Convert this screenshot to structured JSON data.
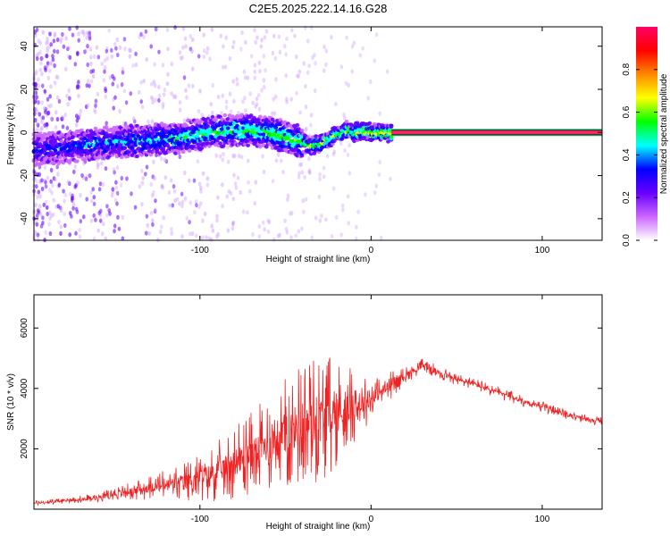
{
  "title": "C2E5.2025.222.14.16.G28",
  "chart_data": [
    {
      "type": "heatmap",
      "xlabel": "Height of straight line (km)",
      "ylabel": "Frequency (Hz)",
      "xlim": [
        -197,
        135
      ],
      "ylim": [
        -50,
        49
      ],
      "xticks": [
        -100,
        0,
        100
      ],
      "yticks": [
        -40,
        -20,
        0,
        20,
        40
      ],
      "ridge": {
        "x": [
          -197,
          -180,
          -160,
          -140,
          -120,
          -100,
          -85,
          -70,
          -60,
          -50,
          -42,
          -36,
          -30,
          -25,
          -20,
          -15,
          -10,
          -5,
          0,
          5,
          12,
          135
        ],
        "frequency": [
          -8,
          -7,
          -5,
          -4,
          -3,
          -1,
          1,
          1,
          0,
          -2,
          -4,
          -6,
          -5,
          -3,
          -1,
          1,
          0,
          1,
          0,
          0,
          0,
          0
        ]
      },
      "colorbar": {
        "label": "Normalized spectral amplitude",
        "ticks": [
          0.0,
          0.2,
          0.4,
          0.6,
          0.8
        ],
        "range": [
          0,
          1
        ],
        "colors": [
          "#ffffff",
          "#cc66ff",
          "#6600ff",
          "#0000ff",
          "#00ffff",
          "#00ff00",
          "#ffff00",
          "#ff8800",
          "#ff0000",
          "#ff0066"
        ]
      }
    },
    {
      "type": "line",
      "xlabel": "Height of straight line (km)",
      "ylabel": "SNR (10 * v/v)",
      "xlim": [
        -197,
        135
      ],
      "ylim": [
        0,
        7100
      ],
      "xticks": [
        -100,
        0,
        100
      ],
      "yticks": [
        2000,
        4000,
        6000
      ],
      "color": "#ee2222",
      "series": [
        {
          "x": [
            -197,
            -185,
            -175,
            -165,
            -155,
            -145,
            -135,
            -125,
            -115,
            -105,
            -100,
            -95,
            -90,
            -85,
            -80,
            -75,
            -70,
            -65,
            -60,
            -55,
            -50,
            -45,
            -40,
            -35,
            -30,
            -25,
            -20,
            -15,
            -10,
            -5,
            0,
            5,
            10,
            15,
            20,
            25,
            30,
            35,
            40,
            50,
            60,
            70,
            80,
            90,
            100,
            110,
            120,
            135
          ],
          "y": [
            200,
            250,
            300,
            350,
            450,
            550,
            650,
            750,
            850,
            950,
            1050,
            1150,
            1250,
            1400,
            1550,
            1700,
            1850,
            2000,
            2150,
            2350,
            2550,
            2700,
            2800,
            2900,
            2950,
            3100,
            3200,
            3300,
            3400,
            3500,
            3650,
            3850,
            4050,
            4250,
            4450,
            4600,
            4750,
            4650,
            4500,
            4300,
            4150,
            3950,
            3750,
            3550,
            3400,
            3200,
            3050,
            2900
          ],
          "noise": [
            80,
            100,
            120,
            140,
            180,
            250,
            350,
            450,
            600,
            700,
            800,
            900,
            1000,
            1100,
            1200,
            1300,
            1400,
            1500,
            1600,
            1700,
            1900,
            2000,
            2100,
            2200,
            2100,
            2000,
            1800,
            1500,
            1200,
            900,
            700,
            600,
            500,
            400,
            300,
            250,
            250,
            250,
            250,
            200,
            200,
            200,
            200,
            180,
            180,
            160,
            150,
            150
          ]
        }
      ]
    }
  ]
}
